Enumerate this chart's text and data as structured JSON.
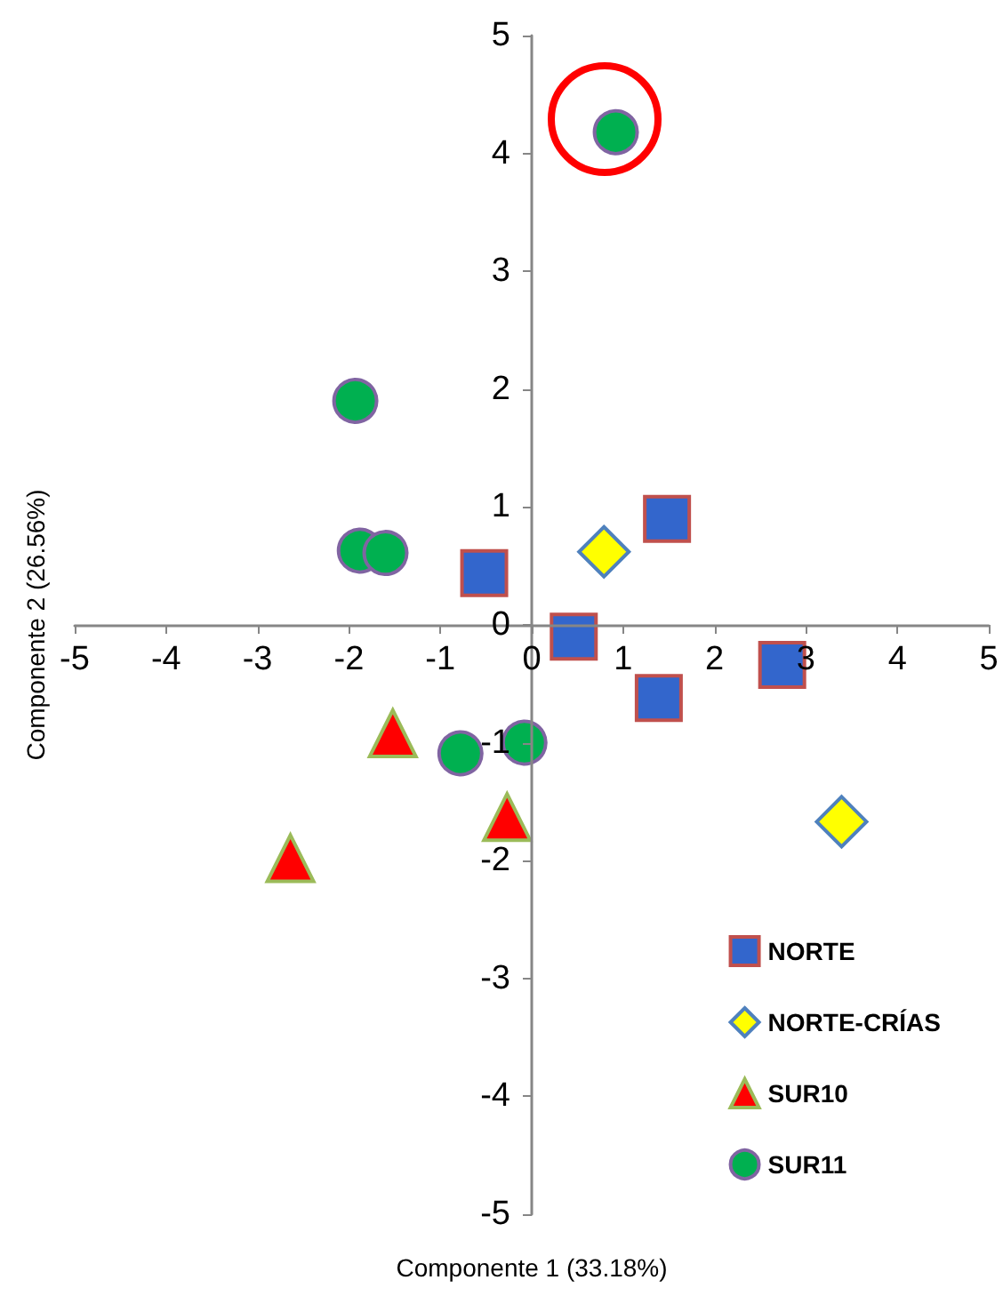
{
  "chart_data": {
    "type": "scatter",
    "xlabel": "Componente 1 (33.18%)",
    "ylabel": "Componente 2 (26.56%)",
    "xlim": [
      -5,
      5
    ],
    "xticks": [
      -5,
      -4,
      -3,
      -2,
      -1,
      0,
      1,
      2,
      3,
      4,
      5
    ],
    "ylim": [
      -5,
      5
    ],
    "yticks": [
      -5,
      -4,
      -3,
      -2,
      -1,
      0,
      1,
      2,
      3,
      4,
      5
    ],
    "legend": "bottom right",
    "series": [
      {
        "name": "NORTE",
        "color": "#3366cc",
        "marker": "square",
        "x": [
          -0.52,
          1.48,
          0.46,
          2.74,
          1.39
        ],
        "values": [
          0.44,
          0.9,
          -0.1,
          -0.34,
          -0.62
        ]
      },
      {
        "name": "NORTE-CRÍAS",
        "color": "#ffff00",
        "marker": "diamond",
        "x": [
          0.79,
          3.39
        ],
        "values": [
          0.62,
          -1.67
        ]
      },
      {
        "name": "SUR10",
        "color": "#ff0000",
        "marker": "triangle",
        "x": [
          -1.52,
          -0.27,
          -2.64
        ],
        "values": [
          -0.92,
          -1.63,
          -1.98
        ]
      },
      {
        "name": "SUR11",
        "color": "#00b050",
        "marker": "circle",
        "x": [
          -1.88,
          -1.6,
          -0.78,
          -0.08,
          -1.93,
          0.92
        ],
        "values": [
          0.63,
          0.61,
          -1.09,
          -1.0,
          1.9,
          4.18
        ]
      }
    ]
  }
}
